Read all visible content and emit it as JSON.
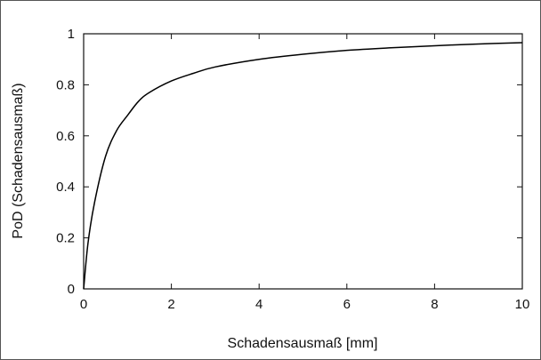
{
  "chart_data": {
    "type": "line",
    "title": "",
    "xlabel": "Schadensausmaß [mm]",
    "ylabel": "PoD (Schadensausmaß)",
    "xlim": [
      0,
      10
    ],
    "ylim": [
      0,
      1
    ],
    "grid": false,
    "legend": "none",
    "x_ticks": [
      0,
      2,
      4,
      6,
      8,
      10
    ],
    "y_ticks": [
      0,
      0.2,
      0.4,
      0.6,
      0.8,
      1
    ],
    "x_tick_labels": [
      "0",
      "2",
      "4",
      "6",
      "8",
      "10"
    ],
    "y_tick_labels": [
      "0",
      "0.2",
      "0.4",
      "0.6",
      "0.8",
      "1"
    ],
    "series": [
      {
        "x": [
          0,
          0.1,
          0.25,
          0.5,
          0.75,
          1,
          1.25,
          1.5,
          2,
          2.5,
          3,
          4,
          5,
          6,
          7,
          8,
          9,
          10
        ],
        "y": [
          0,
          0.18,
          0.34,
          0.52,
          0.62,
          0.68,
          0.735,
          0.77,
          0.815,
          0.845,
          0.87,
          0.9,
          0.92,
          0.935,
          0.945,
          0.953,
          0.96,
          0.965
        ],
        "color": "#000000"
      }
    ]
  }
}
